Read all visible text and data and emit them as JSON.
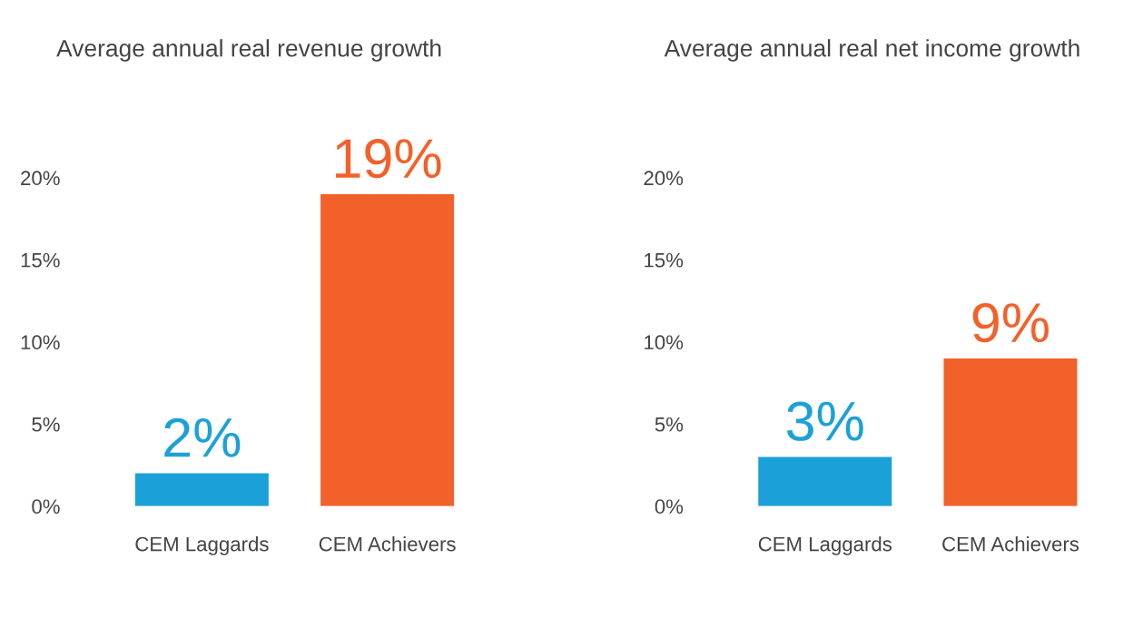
{
  "chart_data": [
    {
      "type": "bar",
      "title": "Average annual real revenue growth",
      "categories": [
        "CEM Laggards",
        "CEM Achievers"
      ],
      "values": [
        2,
        19
      ],
      "colors": [
        "#1ba1d8",
        "#f2612a"
      ],
      "ylim": [
        0,
        20
      ],
      "yticks": [
        {
          "value": 0,
          "label": "0%"
        },
        {
          "value": 5,
          "label": "5%"
        },
        {
          "value": 10,
          "label": "10%"
        },
        {
          "value": 15,
          "label": "15%"
        },
        {
          "value": 20,
          "label": "20%"
        }
      ],
      "value_labels": [
        "2%",
        "19%"
      ],
      "grid": false,
      "legend": false
    },
    {
      "type": "bar",
      "title": "Average annual real net income growth",
      "categories": [
        "CEM Laggards",
        "CEM Achievers"
      ],
      "values": [
        3,
        9
      ],
      "colors": [
        "#1ba1d8",
        "#f2612a"
      ],
      "ylim": [
        0,
        20
      ],
      "yticks": [
        {
          "value": 0,
          "label": "0%"
        },
        {
          "value": 5,
          "label": "5%"
        },
        {
          "value": 10,
          "label": "10%"
        },
        {
          "value": 15,
          "label": "15%"
        },
        {
          "value": 20,
          "label": "20%"
        }
      ],
      "value_labels": [
        "3%",
        "9%"
      ],
      "grid": false,
      "legend": false
    }
  ]
}
